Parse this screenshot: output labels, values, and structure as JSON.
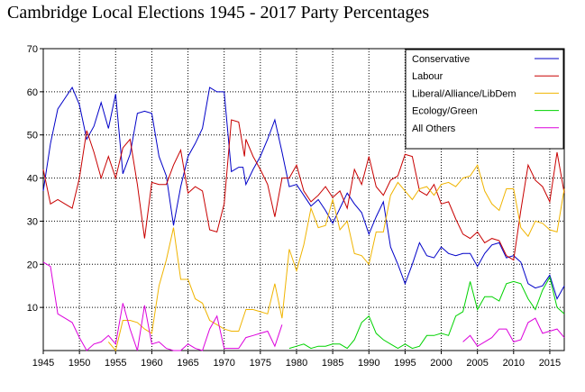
{
  "chart_data": {
    "type": "line",
    "title": "Cambridge Local Elections 1945 - 2017 Party Percentages",
    "xlabel": "",
    "ylabel": "",
    "xlim": [
      1945,
      2017
    ],
    "ylim": [
      0,
      70
    ],
    "grid": true,
    "legend_position": "top-right",
    "x_ticks": [
      1945,
      1950,
      1955,
      1960,
      1965,
      1970,
      1975,
      1980,
      1985,
      1990,
      1995,
      2000,
      2005,
      2010,
      2015
    ],
    "y_ticks": [
      10,
      20,
      30,
      40,
      50,
      60,
      70
    ],
    "series": [
      {
        "name": "Conservative",
        "color": "#0000c8",
        "points": [
          [
            1945,
            37
          ],
          [
            1946,
            48
          ],
          [
            1947,
            56
          ],
          [
            1948,
            58.5
          ],
          [
            1949,
            61
          ],
          [
            1950,
            57
          ],
          [
            1951,
            49
          ],
          [
            1952,
            52
          ],
          [
            1953,
            57.5
          ],
          [
            1954,
            51.5
          ],
          [
            1955,
            59.5
          ],
          [
            1956,
            41
          ],
          [
            1957,
            45.5
          ],
          [
            1958,
            55
          ],
          [
            1959,
            55.5
          ],
          [
            1960,
            55
          ],
          [
            1961,
            45
          ],
          [
            1962,
            40.5
          ],
          [
            1963,
            29
          ],
          [
            1964,
            38
          ],
          [
            1965,
            45
          ],
          [
            1966,
            48
          ],
          [
            1967,
            51.5
          ],
          [
            1968,
            61
          ],
          [
            1969,
            60
          ],
          [
            1970,
            60
          ],
          [
            1971,
            41.5
          ],
          [
            1972,
            42.5
          ],
          [
            1972.6,
            42.5
          ],
          [
            1973,
            38.5
          ],
          [
            1974,
            42
          ],
          [
            1975,
            45
          ],
          [
            1976,
            49
          ],
          [
            1977,
            53.5
          ],
          [
            1978,
            46
          ],
          [
            1979,
            38
          ],
          [
            1980,
            38.5
          ],
          [
            1981,
            36
          ],
          [
            1982,
            33.5
          ],
          [
            1983,
            35
          ],
          [
            1984,
            32.5
          ],
          [
            1985,
            29.5
          ],
          [
            1986,
            33
          ],
          [
            1987,
            36.5
          ],
          [
            1988,
            34
          ],
          [
            1989,
            32
          ],
          [
            1990,
            27
          ],
          [
            1991,
            31
          ],
          [
            1992,
            34.5
          ],
          [
            1993,
            24
          ],
          [
            1994,
            20
          ],
          [
            1995,
            15.5
          ],
          [
            1996,
            20
          ],
          [
            1997,
            25
          ],
          [
            1998,
            22
          ],
          [
            1999,
            21.5
          ],
          [
            2000,
            24
          ],
          [
            2001,
            22.5
          ],
          [
            2002,
            22
          ],
          [
            2003,
            22.5
          ],
          [
            2004,
            22.5
          ],
          [
            2005,
            19.5
          ],
          [
            2006,
            22.5
          ],
          [
            2007,
            24.5
          ],
          [
            2008,
            25
          ],
          [
            2009,
            21.5
          ],
          [
            2010,
            22
          ],
          [
            2011,
            20.5
          ],
          [
            2012,
            15.5
          ],
          [
            2013,
            14.5
          ],
          [
            2014,
            15
          ],
          [
            2015,
            17.5
          ],
          [
            2016,
            12
          ],
          [
            2017,
            15
          ]
        ]
      },
      {
        "name": "Labour",
        "color": "#c80000",
        "points": [
          [
            1945,
            42
          ],
          [
            1946,
            34
          ],
          [
            1947,
            35
          ],
          [
            1948,
            34
          ],
          [
            1949,
            33
          ],
          [
            1950,
            40
          ],
          [
            1951,
            51
          ],
          [
            1952,
            46
          ],
          [
            1953,
            40
          ],
          [
            1954,
            45
          ],
          [
            1955,
            40
          ],
          [
            1956,
            47
          ],
          [
            1957,
            49
          ],
          [
            1958,
            38.5
          ],
          [
            1959,
            26
          ],
          [
            1960,
            39
          ],
          [
            1961,
            38.5
          ],
          [
            1962,
            38.5
          ],
          [
            1963,
            43
          ],
          [
            1964,
            46.5
          ],
          [
            1965,
            36.5
          ],
          [
            1966,
            38
          ],
          [
            1967,
            37
          ],
          [
            1968,
            28
          ],
          [
            1969,
            27.5
          ],
          [
            1970,
            34
          ],
          [
            1971,
            53.5
          ],
          [
            1972,
            53
          ],
          [
            1972.8,
            45
          ],
          [
            1973,
            49
          ],
          [
            1974,
            45
          ],
          [
            1975,
            42
          ],
          [
            1976,
            38.5
          ],
          [
            1977,
            31
          ],
          [
            1978,
            40
          ],
          [
            1979,
            40
          ],
          [
            1980,
            43
          ],
          [
            1981,
            37
          ],
          [
            1982,
            34.5
          ],
          [
            1983,
            36
          ],
          [
            1984,
            38
          ],
          [
            1985,
            35.5
          ],
          [
            1986,
            37
          ],
          [
            1987,
            33
          ],
          [
            1988,
            42
          ],
          [
            1989,
            38.5
          ],
          [
            1990,
            45
          ],
          [
            1991,
            38
          ],
          [
            1992,
            36
          ],
          [
            1993,
            39.5
          ],
          [
            1994,
            40.5
          ],
          [
            1995,
            45.5
          ],
          [
            1996,
            45
          ],
          [
            1997,
            37
          ],
          [
            1998,
            36
          ],
          [
            1999,
            38.5
          ],
          [
            2000,
            34
          ],
          [
            2001,
            34.5
          ],
          [
            2002,
            30.5
          ],
          [
            2003,
            27
          ],
          [
            2004,
            26
          ],
          [
            2005,
            27.5
          ],
          [
            2006,
            25
          ],
          [
            2007,
            26
          ],
          [
            2008,
            25.5
          ],
          [
            2009,
            22
          ],
          [
            2010,
            21
          ],
          [
            2011,
            32.5
          ],
          [
            2012,
            43
          ],
          [
            2013,
            39.5
          ],
          [
            2014,
            38
          ],
          [
            2015,
            34.5
          ],
          [
            2016,
            46
          ],
          [
            2017,
            36.5
          ]
        ]
      },
      {
        "name": "Liberal/Alliance/LibDem",
        "color": "#f0b400",
        "points": [
          [
            1954,
            2
          ],
          [
            1955,
            0
          ],
          [
            1956,
            7
          ],
          [
            1957,
            7
          ],
          [
            1958,
            6.5
          ],
          [
            1959,
            5
          ],
          [
            1960,
            4
          ],
          [
            1961,
            15
          ],
          [
            1962,
            21
          ],
          [
            1963,
            28.5
          ],
          [
            1964,
            16.5
          ],
          [
            1965,
            16.5
          ],
          [
            1966,
            12
          ],
          [
            1967,
            11
          ],
          [
            1968,
            7
          ],
          [
            1969,
            6
          ],
          [
            1970,
            5
          ],
          [
            1971,
            4.5
          ],
          [
            1972,
            4.5
          ],
          [
            1973,
            9.5
          ],
          [
            1974,
            9.5
          ],
          [
            1975,
            9
          ],
          [
            1976,
            8.5
          ],
          [
            1977,
            15.5
          ],
          [
            1978,
            7.5
          ],
          [
            1979,
            23.5
          ],
          [
            1980,
            18.5
          ],
          [
            1981,
            24.5
          ],
          [
            1982,
            33
          ],
          [
            1983,
            28.5
          ],
          [
            1984,
            29
          ],
          [
            1985,
            35
          ],
          [
            1986,
            28
          ],
          [
            1987,
            30
          ],
          [
            1988,
            22.5
          ],
          [
            1989,
            22
          ],
          [
            1990,
            20
          ],
          [
            1991,
            27.5
          ],
          [
            1992,
            27.5
          ],
          [
            1993,
            36
          ],
          [
            1994,
            39
          ],
          [
            1995,
            37
          ],
          [
            1996,
            35
          ],
          [
            1997,
            37.5
          ],
          [
            1998,
            38
          ],
          [
            1999,
            36
          ],
          [
            2000,
            38.5
          ],
          [
            2001,
            39
          ],
          [
            2002,
            38
          ],
          [
            2003,
            40
          ],
          [
            2004,
            40.5
          ],
          [
            2005,
            43
          ],
          [
            2006,
            37
          ],
          [
            2007,
            34
          ],
          [
            2008,
            32.5
          ],
          [
            2009,
            37.5
          ],
          [
            2010,
            37.5
          ],
          [
            2011,
            28.5
          ],
          [
            2012,
            26.5
          ],
          [
            2013,
            30
          ],
          [
            2014,
            29.5
          ],
          [
            2015,
            28
          ],
          [
            2016,
            27.5
          ],
          [
            2017,
            37.5
          ]
        ]
      },
      {
        "name": "Ecology/Green",
        "color": "#00d200",
        "points": [
          [
            1979,
            0.5
          ],
          [
            1980,
            1
          ],
          [
            1981,
            1.5
          ],
          [
            1982,
            0.5
          ],
          [
            1983,
            1
          ],
          [
            1984,
            1
          ],
          [
            1985,
            1.5
          ],
          [
            1986,
            1.5
          ],
          [
            1987,
            0.5
          ],
          [
            1988,
            2.5
          ],
          [
            1989,
            6.5
          ],
          [
            1990,
            8
          ],
          [
            1991,
            4
          ],
          [
            1992,
            2.5
          ],
          [
            1993,
            1.5
          ],
          [
            1994,
            0.5
          ],
          [
            1995,
            1.5
          ],
          [
            1996,
            0.5
          ],
          [
            1997,
            1
          ],
          [
            1998,
            3.5
          ],
          [
            1999,
            3.5
          ],
          [
            2000,
            4
          ],
          [
            2001,
            3.5
          ],
          [
            2002,
            8
          ],
          [
            2003,
            9
          ],
          [
            2004,
            16
          ],
          [
            2005,
            9.5
          ],
          [
            2006,
            12.5
          ],
          [
            2007,
            12.5
          ],
          [
            2008,
            11.5
          ],
          [
            2009,
            15.5
          ],
          [
            2010,
            16
          ],
          [
            2011,
            15.5
          ],
          [
            2012,
            12
          ],
          [
            2013,
            9.5
          ],
          [
            2014,
            14
          ],
          [
            2015,
            17
          ],
          [
            2016,
            10
          ],
          [
            2017,
            8.5
          ]
        ]
      },
      {
        "name": "All Others",
        "color": "#dc00dc",
        "points": [
          [
            1945,
            20.5
          ],
          [
            1946,
            19.5
          ],
          [
            1947,
            8.5
          ],
          [
            1948,
            7.5
          ],
          [
            1949,
            6.5
          ],
          [
            1950,
            3
          ],
          [
            1951,
            0
          ],
          [
            1952,
            1.5
          ],
          [
            1953,
            2
          ],
          [
            1954,
            3.5
          ],
          [
            1955,
            1.5
          ],
          [
            1956,
            11
          ],
          [
            1957,
            5
          ],
          [
            1958,
            0
          ],
          [
            1959,
            10.5
          ],
          [
            1960,
            1.5
          ],
          [
            1961,
            2
          ],
          [
            1962,
            0.5
          ],
          [
            1963,
            0
          ],
          [
            1964,
            0
          ],
          [
            1965,
            1.5
          ],
          [
            1966,
            0.5
          ],
          [
            1967,
            0
          ],
          [
            1968,
            5
          ],
          [
            1969,
            8
          ],
          [
            1970,
            0.5
          ],
          [
            1971,
            0.5
          ],
          [
            1972,
            0.5
          ],
          [
            1973,
            3
          ],
          [
            1974,
            3.5
          ],
          [
            1975,
            4
          ],
          [
            1976,
            4.5
          ],
          [
            1977,
            1
          ],
          [
            1978,
            6
          ]
        ]
      },
      {
        "name": "All Others (later)",
        "color": "#dc00dc",
        "legend": false,
        "points": [
          [
            2003,
            2
          ],
          [
            2004,
            3.5
          ],
          [
            2005,
            1
          ],
          [
            2006,
            2
          ],
          [
            2007,
            3
          ],
          [
            2008,
            5
          ],
          [
            2009,
            5
          ],
          [
            2010,
            2
          ],
          [
            2011,
            2.5
          ],
          [
            2012,
            6.5
          ],
          [
            2013,
            7.5
          ],
          [
            2014,
            4
          ],
          [
            2015,
            4.5
          ],
          [
            2016,
            5
          ],
          [
            2017,
            3
          ]
        ]
      }
    ]
  }
}
